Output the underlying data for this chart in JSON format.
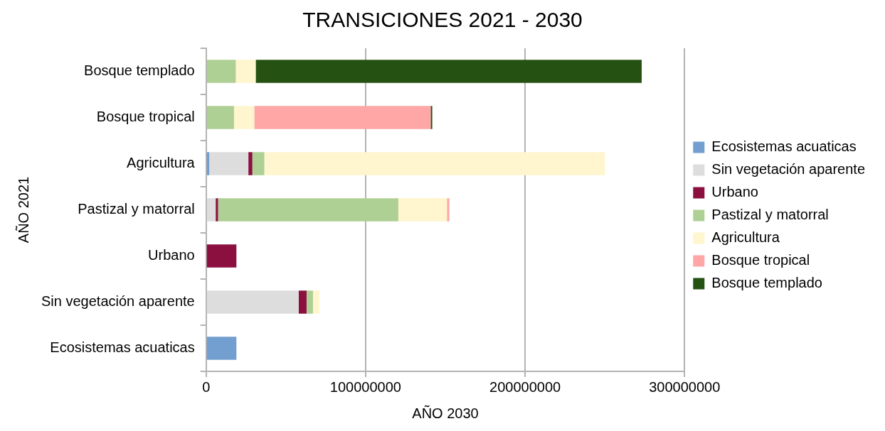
{
  "chart_data": {
    "type": "bar",
    "orientation": "horizontal",
    "stacked": true,
    "title": "TRANSICIONES 2021 - 2030",
    "xlabel": "AÑO 2030",
    "ylabel": "AÑO 2021",
    "categories": [
      "Bosque templado",
      "Bosque tropical",
      "Agricultura",
      "Pastizal y matorral",
      "Urbano",
      "Sin vegetación aparente",
      "Ecosistemas acuaticas"
    ],
    "series": [
      {
        "name": "Ecosistemas acuaticas",
        "color": "#729fcf",
        "values": [
          null,
          null,
          2000000,
          null,
          null,
          null,
          19000000
        ]
      },
      {
        "name": "Sin vegetación aparente",
        "color": "#dddddd",
        "values": [
          null,
          null,
          24500000,
          6000000,
          null,
          58000000,
          null
        ]
      },
      {
        "name": "Urbano",
        "color": "#8b1040",
        "values": [
          null,
          null,
          2500000,
          1500000,
          19000000,
          5000000,
          null
        ]
      },
      {
        "name": "Pastizal y matorral",
        "color": "#afd095",
        "values": [
          18600000,
          17500000,
          7500000,
          113000000,
          null,
          4000000,
          null
        ]
      },
      {
        "name": "Agricultura",
        "color": "#fff5ce",
        "values": [
          12500000,
          12700000,
          213600000,
          30500000,
          null,
          4000000,
          null
        ]
      },
      {
        "name": "Bosque tropical",
        "color": "#ffa6a6",
        "values": [
          null,
          110600000,
          null,
          1500000,
          null,
          null,
          null
        ]
      },
      {
        "name": "Bosque templado",
        "color": "#255113",
        "values": [
          242000000,
          1000000,
          null,
          null,
          null,
          null,
          null
        ]
      }
    ],
    "xlim": [
      0,
      300000000
    ],
    "xticks": [
      0,
      100000000,
      200000000,
      300000000
    ],
    "grid": "x",
    "legend": "right"
  }
}
